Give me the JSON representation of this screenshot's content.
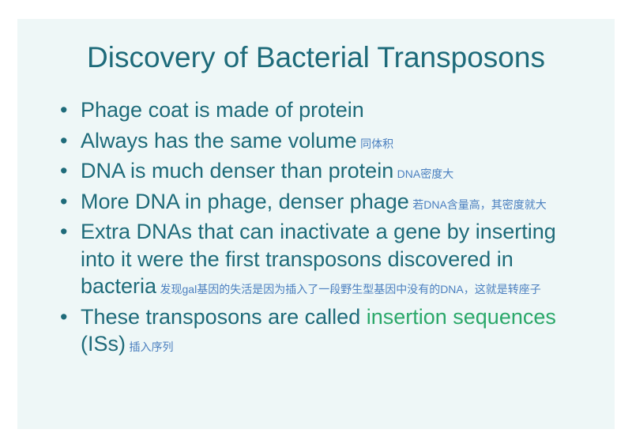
{
  "colors": {
    "page_bg": "#ffffff",
    "slide_bg": "#eef7f7",
    "title_color": "#1e6b7a",
    "text_color": "#1e6b7a",
    "highlight_color": "#2ba86a",
    "annotation_color": "#4a7fbf"
  },
  "typography": {
    "title_fontsize": 37,
    "body_fontsize": 27,
    "annotation_fontsize": 14,
    "font_family": "Arial"
  },
  "title": "Discovery of Bacterial Transposons",
  "bullets": [
    {
      "text": "Phage coat is made of protein",
      "annot": ""
    },
    {
      "text": "Always has the same volume",
      "annot": "同体积"
    },
    {
      "text": "DNA is much denser than protein",
      "annot": "DNA密度大"
    },
    {
      "text": "More DNA in phage, denser phage",
      "annot": "若DNA含量高，其密度就大"
    },
    {
      "text": "Extra DNAs that can inactivate a gene by inserting into it were the first transposons discovered in bacteria",
      "annot": "发现gal基因的失活是因为插入了一段野生型基因中没有的DNA，这就是转座子"
    },
    {
      "pre": "These transposons are called ",
      "highlight": "insertion sequences",
      "post": " (ISs)",
      "annot": "插入序列"
    }
  ]
}
